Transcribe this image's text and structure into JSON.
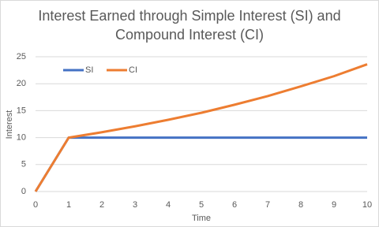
{
  "chart_data": {
    "type": "line",
    "title": "Interest Earned through Simple Interest (SI) and Compound Interest (CI)",
    "x_label": "Time",
    "y_label": "Interest",
    "x": [
      0,
      1,
      2,
      3,
      4,
      5,
      6,
      7,
      8,
      9,
      10
    ],
    "series": [
      {
        "name": "SI",
        "color": "#4472c4",
        "values": [
          0,
          10,
          10,
          10,
          10,
          10,
          10,
          10,
          10,
          10,
          10
        ]
      },
      {
        "name": "CI",
        "color": "#ed7d31",
        "values": [
          0,
          10,
          11,
          12.1,
          13.3,
          14.6,
          16.1,
          17.7,
          19.5,
          21.4,
          23.6
        ]
      }
    ],
    "xlim": [
      0,
      10
    ],
    "xticks": [
      0,
      1,
      2,
      3,
      4,
      5,
      6,
      7,
      8,
      9,
      10
    ],
    "ylim": [
      0,
      25
    ],
    "yticks": [
      0,
      5,
      10,
      15,
      20,
      25
    ],
    "grid": true,
    "legend": "top-left"
  }
}
